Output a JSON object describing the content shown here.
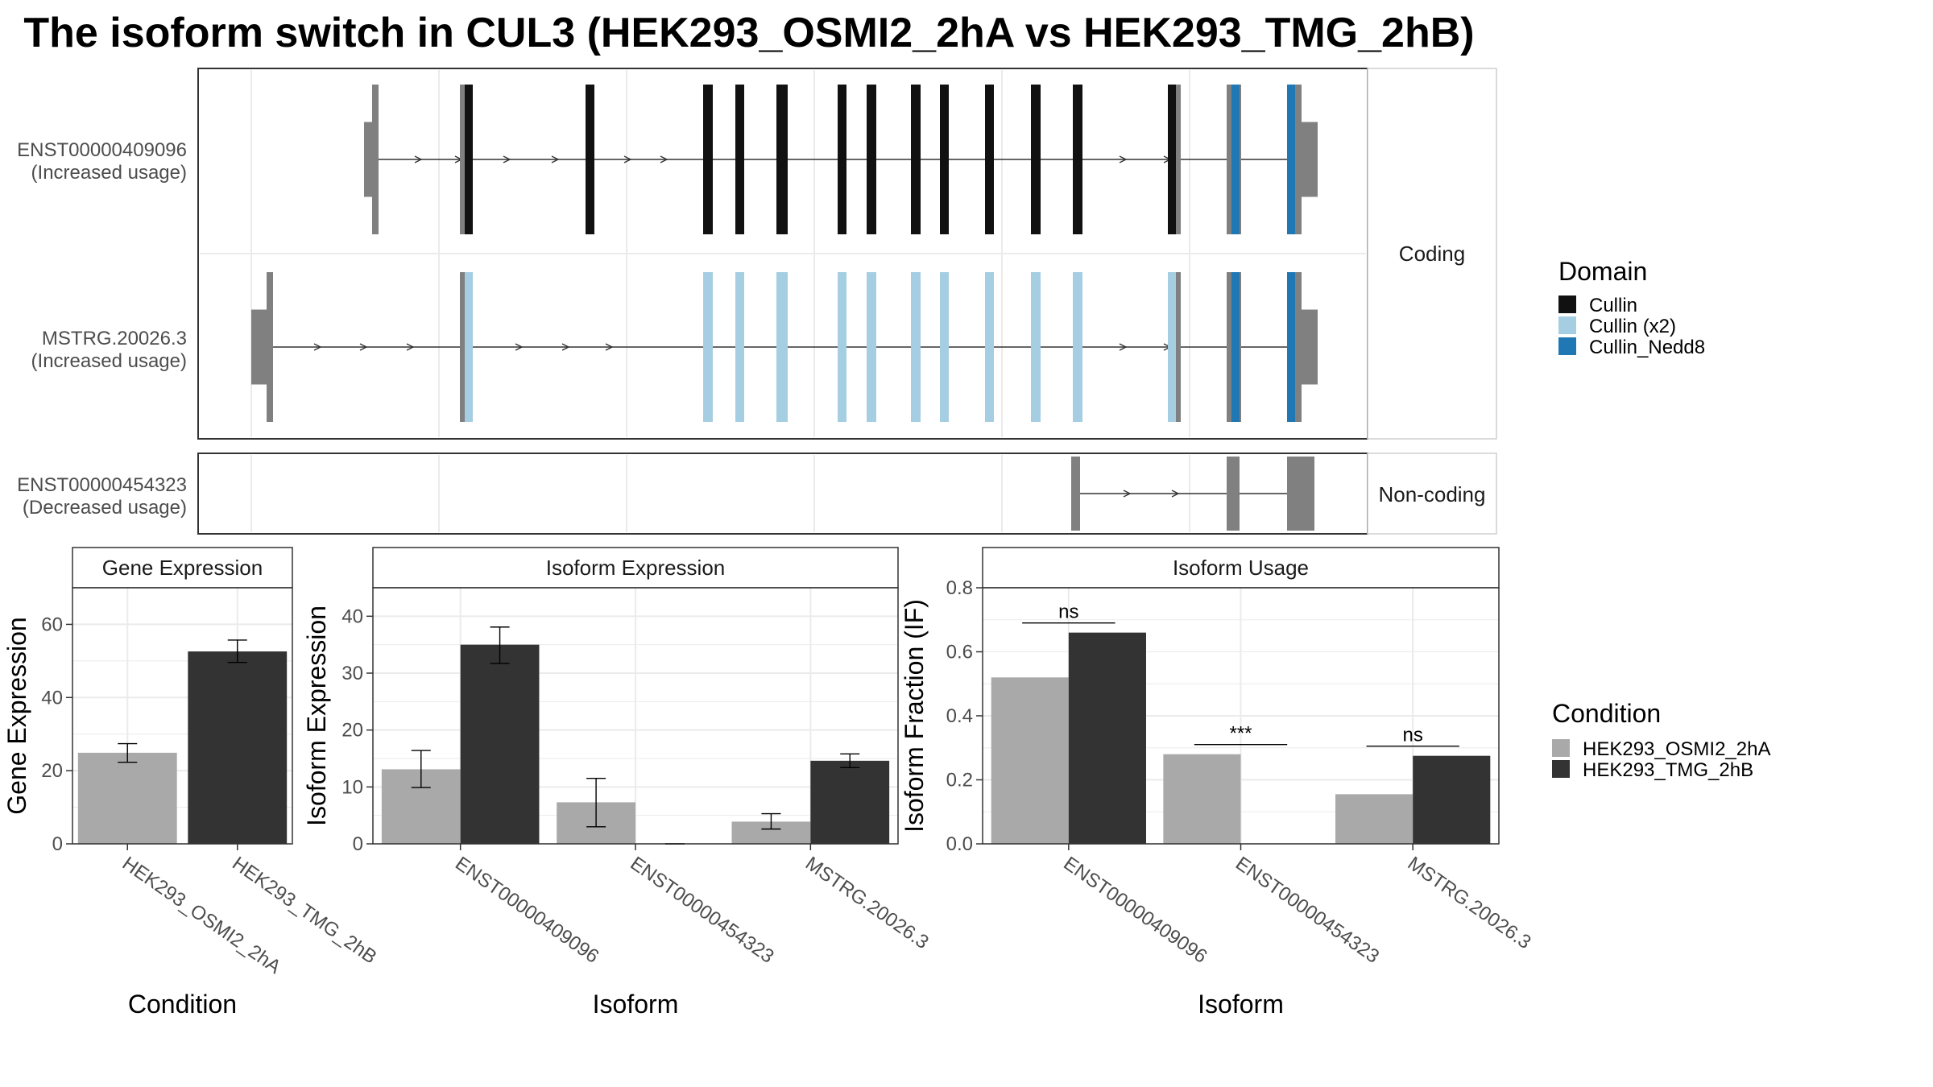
{
  "title": "The isoform switch in CUL3 (HEK293_OSMI2_2hA vs HEK293_TMG_2hB)",
  "colors": {
    "cullin": "#111111",
    "cullin_x2": "#a6cee3",
    "cullin_nedd8": "#1f78b4",
    "utr": "#808080",
    "condition_a": "#a9a9a9",
    "condition_b": "#333333",
    "grid": "#ebebeb"
  },
  "structure": {
    "coding_strip": "Coding",
    "noncoding_strip": "Non-coding",
    "transcripts": [
      {
        "name": "ENST00000409096",
        "usage": "(Increased usage)",
        "group": "coding"
      },
      {
        "name": "MSTRG.20026.3",
        "usage": "(Increased usage)",
        "group": "coding"
      },
      {
        "name": "ENST00000454323",
        "usage": "(Decreased usage)",
        "group": "noncoding"
      }
    ]
  },
  "domain_legend": {
    "title": "Domain",
    "items": [
      {
        "label": "Cullin",
        "color": "#111111"
      },
      {
        "label": "Cullin (x2)",
        "color": "#a6cee3"
      },
      {
        "label": "Cullin_Nedd8",
        "color": "#1f78b4"
      }
    ]
  },
  "condition_legend": {
    "title": "Condition",
    "items": [
      {
        "label": "HEK293_OSMI2_2hA",
        "color": "#a9a9a9"
      },
      {
        "label": "HEK293_TMG_2hB",
        "color": "#333333"
      }
    ]
  },
  "chart_data": [
    {
      "type": "bar",
      "title": "Gene Expression",
      "xlabel": "Condition",
      "ylabel": "Gene Expression",
      "categories": [
        "HEK293_OSMI2_2hA",
        "HEK293_TMG_2hB"
      ],
      "values": [
        24.9,
        52.6
      ],
      "error_low": [
        22.3,
        49.6
      ],
      "error_high": [
        27.4,
        55.7
      ],
      "ylim": [
        0,
        70
      ],
      "yticks": [
        0,
        20,
        40,
        60
      ]
    },
    {
      "type": "bar",
      "title": "Isoform Expression",
      "xlabel": "Isoform",
      "ylabel": "Isoform Expression",
      "categories": [
        "ENST00000409096",
        "ENST00000454323",
        "MSTRG.20026.3"
      ],
      "series": [
        {
          "name": "HEK293_OSMI2_2hA",
          "values": [
            13.1,
            7.3,
            3.9
          ],
          "error_low": [
            9.9,
            3.0,
            2.6
          ],
          "error_high": [
            16.4,
            11.5,
            5.3
          ]
        },
        {
          "name": "HEK293_TMG_2hB",
          "values": [
            35.0,
            0.0,
            14.6
          ],
          "error_low": [
            31.7,
            0.0,
            13.4
          ],
          "error_high": [
            38.1,
            0.0,
            15.8
          ]
        }
      ],
      "ylim": [
        0,
        45
      ],
      "yticks": [
        0,
        10,
        20,
        30,
        40
      ]
    },
    {
      "type": "bar",
      "title": "Isoform Usage",
      "xlabel": "Isoform",
      "ylabel": "Isoform Fraction (IF)",
      "categories": [
        "ENST00000409096",
        "ENST00000454323",
        "MSTRG.20026.3"
      ],
      "series": [
        {
          "name": "HEK293_OSMI2_2hA",
          "values": [
            0.52,
            0.28,
            0.155
          ]
        },
        {
          "name": "HEK293_TMG_2hB",
          "values": [
            0.66,
            0.0,
            0.275
          ]
        }
      ],
      "significance": [
        "ns",
        "***",
        "ns"
      ],
      "ylim": [
        0,
        0.8
      ],
      "yticks": [
        "0.0",
        "0.2",
        "0.4",
        "0.6",
        "0.8"
      ]
    }
  ]
}
